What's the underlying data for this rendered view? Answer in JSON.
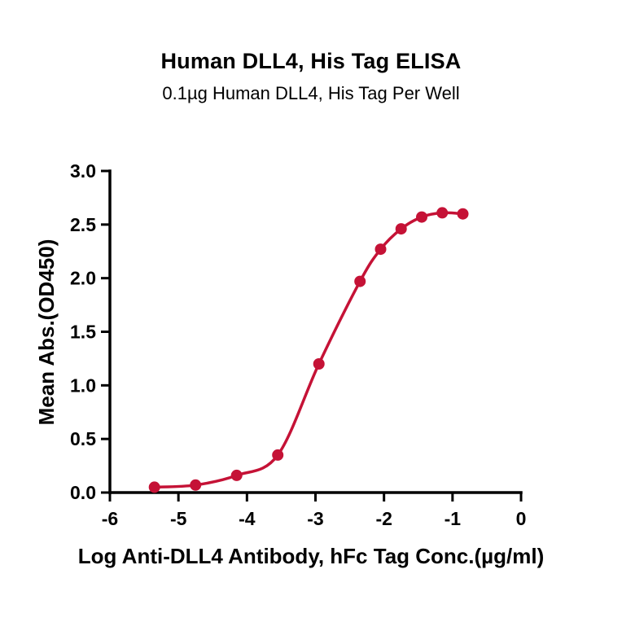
{
  "chart_data": {
    "type": "scatter",
    "title": "Human DLL4, His Tag ELISA",
    "subtitle": "0.1µg Human DLL4, His Tag Per Well",
    "xlabel": "Log Anti-DLL4 Antibody, hFc Tag Conc.(µg/ml)",
    "ylabel": "Mean Abs.(OD450)",
    "xlim": [
      -6,
      0
    ],
    "ylim": [
      0,
      3
    ],
    "x_ticks": [
      -6,
      -5,
      -4,
      -3,
      -2,
      -1,
      0
    ],
    "y_ticks": [
      0,
      0.5,
      1,
      1.5,
      2,
      2.5,
      3
    ],
    "grid": false,
    "legend": false,
    "curve": "4pl-sigmoid-fit",
    "series": [
      {
        "name": "Anti-DLL4 Antibody, hFc Tag",
        "color": "#C51236",
        "marker": "circle",
        "x": [
          -5.35,
          -4.75,
          -4.15,
          -3.55,
          -2.95,
          -2.35,
          -2.05,
          -1.75,
          -1.45,
          -1.15,
          -0.85
        ],
        "y": [
          0.05,
          0.07,
          0.16,
          0.35,
          1.2,
          1.97,
          2.27,
          2.46,
          2.57,
          2.61,
          2.6
        ]
      }
    ]
  }
}
